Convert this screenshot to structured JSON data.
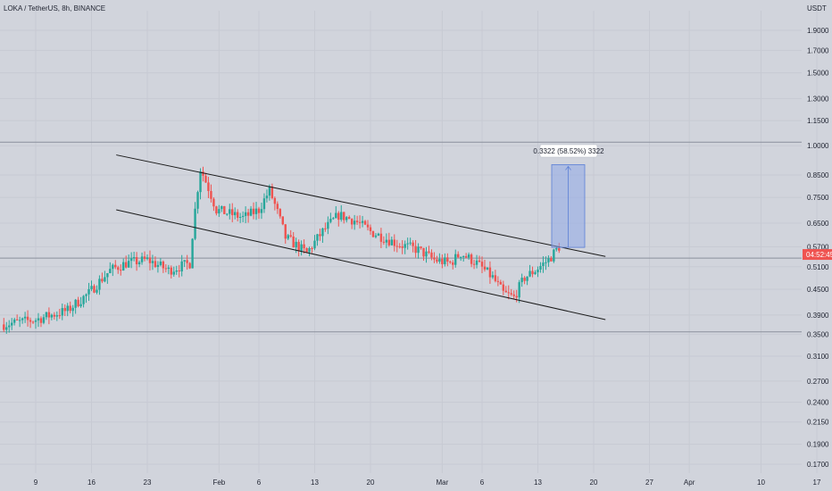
{
  "header": {
    "title": "LOKA / TetherUS, 8h, BINANCE"
  },
  "price_axis": {
    "unit": "USDT",
    "ticks": [
      "1.9000",
      "1.7000",
      "1.5000",
      "1.3000",
      "1.1500",
      "1.0000",
      "0.8500",
      "0.7500",
      "0.6500",
      "0.5700",
      "0.5100",
      "0.4500",
      "0.3900",
      "0.3500",
      "0.3100",
      "0.2700",
      "0.2400",
      "0.2150",
      "0.1900",
      "0.1700"
    ],
    "current_price_label": "04:52:45"
  },
  "time_axis": {
    "ticks": [
      "9",
      "16",
      "23",
      "Feb",
      "6",
      "13",
      "20",
      "Mar",
      "6",
      "13",
      "20",
      "27",
      "Apr",
      "10",
      "17"
    ]
  },
  "measure": {
    "label": "0.3322 (58.52%) 3322"
  },
  "colors": {
    "background": "#d1d4dc",
    "up": "#26a69a",
    "down": "#ef5350",
    "measure_fill": "#8fa8e8",
    "measure_line": "#5b7fd6",
    "trendline": "#1a1a1a",
    "hline": "#8a8f9c",
    "price_tag": "#ef5350"
  },
  "chart_data": {
    "type": "candlestick",
    "title": "LOKA / TetherUS, 8h, BINANCE",
    "unit": "USDT",
    "scale": "log",
    "ylim": [
      0.17,
      1.9
    ],
    "x_range": [
      "2022-01-05",
      "2022-04-18"
    ],
    "trend_channel": {
      "upper": [
        {
          "date": "2022-01-20",
          "price": 0.95
        },
        {
          "date": "2022-03-17",
          "price": 0.54
        }
      ],
      "lower": [
        {
          "date": "2022-01-20",
          "price": 0.7
        },
        {
          "date": "2022-03-17",
          "price": 0.38
        }
      ]
    },
    "horizontal_levels": [
      1.02,
      0.535,
      0.355
    ],
    "measure": {
      "from_price": 0.568,
      "to_price": 0.9,
      "change": 0.3322,
      "percent": 58.52
    },
    "candle_count": 210
  }
}
